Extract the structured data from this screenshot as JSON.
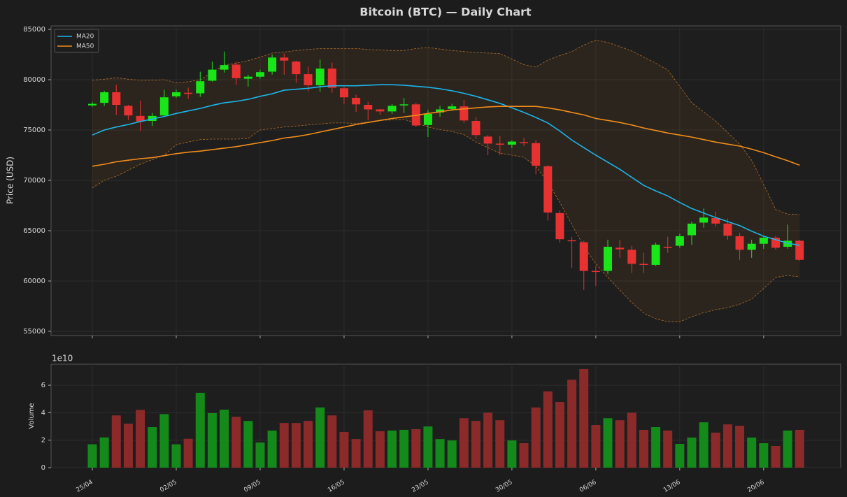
{
  "chart_data": [
    {
      "type": "candlestick",
      "title": "Bitcoin (BTC) — Daily Chart",
      "ylabel": "Price (USD)",
      "categories": [
        "25/04",
        null,
        null,
        null,
        null,
        null,
        null,
        "02/05",
        null,
        null,
        null,
        null,
        null,
        null,
        "09/05",
        null,
        null,
        null,
        null,
        null,
        null,
        "16/05",
        null,
        null,
        null,
        null,
        null,
        null,
        "23/05",
        null,
        null,
        null,
        null,
        null,
        null,
        "30/05",
        null,
        null,
        null,
        null,
        null,
        null,
        "06/06",
        null,
        null,
        null,
        null,
        null,
        null,
        "13/06",
        null,
        null,
        null,
        null,
        null,
        null,
        "20/06",
        null,
        null,
        null
      ],
      "open": [
        77450,
        77700,
        78750,
        77400,
        76400,
        75900,
        76450,
        78350,
        78700,
        78650,
        79900,
        81000,
        81500,
        80100,
        80300,
        80800,
        82200,
        81800,
        80550,
        79450,
        81100,
        79150,
        78200,
        77500,
        77050,
        76850,
        77450,
        77550,
        75500,
        76750,
        77100,
        77350,
        75900,
        74350,
        73650,
        73550,
        73800,
        73700,
        71400,
        66750,
        64050,
        63850,
        61000,
        61000,
        63300,
        63100,
        61700,
        61600,
        63400,
        63500,
        64550,
        65800,
        66250,
        65700,
        64450,
        63100,
        63700,
        64300,
        63400,
        64000
      ],
      "high": [
        77800,
        78900,
        79500,
        77500,
        77900,
        76700,
        79000,
        79000,
        79200,
        80800,
        81800,
        82800,
        81800,
        80500,
        81000,
        82500,
        82600,
        81900,
        81300,
        82000,
        81700,
        79300,
        78500,
        77800,
        77100,
        77600,
        78200,
        77700,
        77000,
        77400,
        77600,
        78000,
        76300,
        74500,
        74400,
        74000,
        74200,
        74000,
        71500,
        67000,
        64400,
        64000,
        61500,
        64100,
        64100,
        63500,
        62800,
        63800,
        64400,
        64700,
        65900,
        67200,
        66900,
        66200,
        64800,
        64100,
        64500,
        64500,
        65600,
        64100
      ],
      "low": [
        77300,
        77400,
        76500,
        76000,
        74900,
        75400,
        76300,
        78200,
        78100,
        78300,
        79800,
        80700,
        79500,
        79300,
        80100,
        80500,
        80500,
        79700,
        78800,
        78800,
        78700,
        77600,
        76800,
        76000,
        76500,
        76600,
        76700,
        75300,
        74300,
        76300,
        76900,
        75700,
        74100,
        72500,
        72500,
        73200,
        73400,
        70600,
        66000,
        63800,
        61300,
        59100,
        59500,
        60700,
        62300,
        60800,
        60800,
        61500,
        62800,
        63300,
        63600,
        65300,
        65400,
        64100,
        62100,
        62300,
        63200,
        63100,
        63200,
        62000
      ],
      "close": [
        77600,
        78750,
        77500,
        76450,
        75850,
        76400,
        78250,
        78750,
        78600,
        79850,
        81000,
        81450,
        80150,
        80300,
        80750,
        82200,
        81900,
        80550,
        79450,
        81100,
        79200,
        78250,
        77550,
        77050,
        76850,
        77400,
        77550,
        75450,
        76600,
        77050,
        77350,
        75950,
        74500,
        73650,
        73550,
        73850,
        73700,
        71450,
        66800,
        64150,
        63950,
        61000,
        60950,
        63400,
        63150,
        61700,
        61600,
        63600,
        63300,
        64450,
        65700,
        66300,
        65700,
        64500,
        63100,
        63700,
        64300,
        63300,
        64000,
        62100
      ],
      "up_color": "#19e619",
      "down_color": "#e83232",
      "series": [
        {
          "name": "MA20",
          "color": "#1cb4e8",
          "values": [
            74500,
            75000,
            75300,
            75550,
            75850,
            76100,
            76350,
            76650,
            76900,
            77150,
            77450,
            77700,
            77850,
            78050,
            78350,
            78600,
            78950,
            79050,
            79150,
            79300,
            79400,
            79400,
            79400,
            79450,
            79500,
            79500,
            79450,
            79350,
            79250,
            79100,
            78900,
            78650,
            78350,
            78000,
            77650,
            77200,
            76750,
            76250,
            75700,
            74900,
            74000,
            73250,
            72500,
            71800,
            71100,
            70300,
            69500,
            68950,
            68450,
            67800,
            67200,
            66750,
            66300,
            65900,
            65500,
            64950,
            64450,
            64100,
            63750,
            63550
          ]
        },
        {
          "name": "MA50",
          "color": "#f08c1a",
          "values": [
            71400,
            71600,
            71850,
            72000,
            72150,
            72250,
            72450,
            72650,
            72800,
            72900,
            73050,
            73200,
            73350,
            73550,
            73750,
            73950,
            74200,
            74350,
            74550,
            74800,
            75050,
            75300,
            75550,
            75750,
            75950,
            76150,
            76300,
            76450,
            76650,
            76800,
            77000,
            77100,
            77200,
            77300,
            77350,
            77350,
            77350,
            77350,
            77200,
            77000,
            76750,
            76500,
            76150,
            75950,
            75750,
            75500,
            75200,
            74950,
            74700,
            74500,
            74300,
            74050,
            73800,
            73600,
            73400,
            73100,
            72750,
            72350,
            71950,
            71500
          ]
        }
      ],
      "band": {
        "color": "#b06e28",
        "upper": [
          79950,
          80050,
          80200,
          80050,
          79950,
          79950,
          80000,
          79700,
          79800,
          80000,
          80700,
          81450,
          81650,
          81900,
          82250,
          82650,
          82750,
          82900,
          83000,
          83100,
          83100,
          83100,
          83100,
          83000,
          82950,
          82900,
          82900,
          83100,
          83200,
          83050,
          82900,
          82800,
          82700,
          82650,
          82600,
          82050,
          81500,
          81250,
          81950,
          82400,
          82800,
          83450,
          83950,
          83700,
          83300,
          82850,
          82250,
          81650,
          80950,
          79350,
          77700,
          76800,
          75900,
          74750,
          73600,
          72000,
          69600,
          67100,
          66650,
          66600
        ],
        "lower": [
          69250,
          70000,
          70400,
          71000,
          71600,
          72050,
          72500,
          73550,
          73800,
          74050,
          74100,
          74100,
          74100,
          74150,
          75000,
          75150,
          75300,
          75400,
          75500,
          75600,
          75700,
          75700,
          75650,
          75800,
          75950,
          76000,
          76050,
          75700,
          75300,
          75050,
          74850,
          74550,
          73800,
          73250,
          72700,
          72500,
          72300,
          71400,
          69800,
          67800,
          65600,
          63450,
          61700,
          60350,
          59100,
          57850,
          56800,
          56250,
          55950,
          55950,
          56450,
          56850,
          57150,
          57350,
          57700,
          58200,
          59250,
          60350,
          60550,
          60400
        ]
      },
      "ylim": [
        54580,
        85350
      ],
      "yticks": [
        55000,
        60000,
        65000,
        70000,
        75000,
        80000,
        85000
      ],
      "grid": true,
      "legend": "upper left"
    },
    {
      "type": "bar",
      "ylabel": "Volume",
      "offset_label": "1e10",
      "categories": [
        "25/04",
        null,
        null,
        null,
        null,
        null,
        null,
        "02/05",
        null,
        null,
        null,
        null,
        null,
        null,
        "09/05",
        null,
        null,
        null,
        null,
        null,
        null,
        "16/05",
        null,
        null,
        null,
        null,
        null,
        null,
        "23/05",
        null,
        null,
        null,
        null,
        null,
        null,
        "30/05",
        null,
        null,
        null,
        null,
        null,
        null,
        "06/06",
        null,
        null,
        null,
        null,
        null,
        null,
        "13/06",
        null,
        null,
        null,
        null,
        null,
        null,
        "20/06",
        null,
        null,
        null
      ],
      "values": [
        1.7,
        2.2,
        3.8,
        3.2,
        4.2,
        2.95,
        3.9,
        1.7,
        2.1,
        5.45,
        3.97,
        4.22,
        3.7,
        3.4,
        1.83,
        2.7,
        3.25,
        3.25,
        3.4,
        4.38,
        3.8,
        2.6,
        2.08,
        4.17,
        2.65,
        2.7,
        2.75,
        2.8,
        3.0,
        2.08,
        1.98,
        3.6,
        3.4,
        4.0,
        3.45,
        1.98,
        1.78,
        4.38,
        5.55,
        4.78,
        6.4,
        7.18,
        3.1,
        3.6,
        3.45,
        4.0,
        2.75,
        2.95,
        2.7,
        1.73,
        2.19,
        3.3,
        2.55,
        3.15,
        3.05,
        2.19,
        1.78,
        1.58,
        2.7,
        2.75
      ],
      "up_color": "#138a1a",
      "down_color": "#8c2a2a",
      "ylim": [
        0,
        7.53
      ],
      "yticks": [
        0,
        2,
        4,
        6
      ],
      "grid": true
    }
  ]
}
